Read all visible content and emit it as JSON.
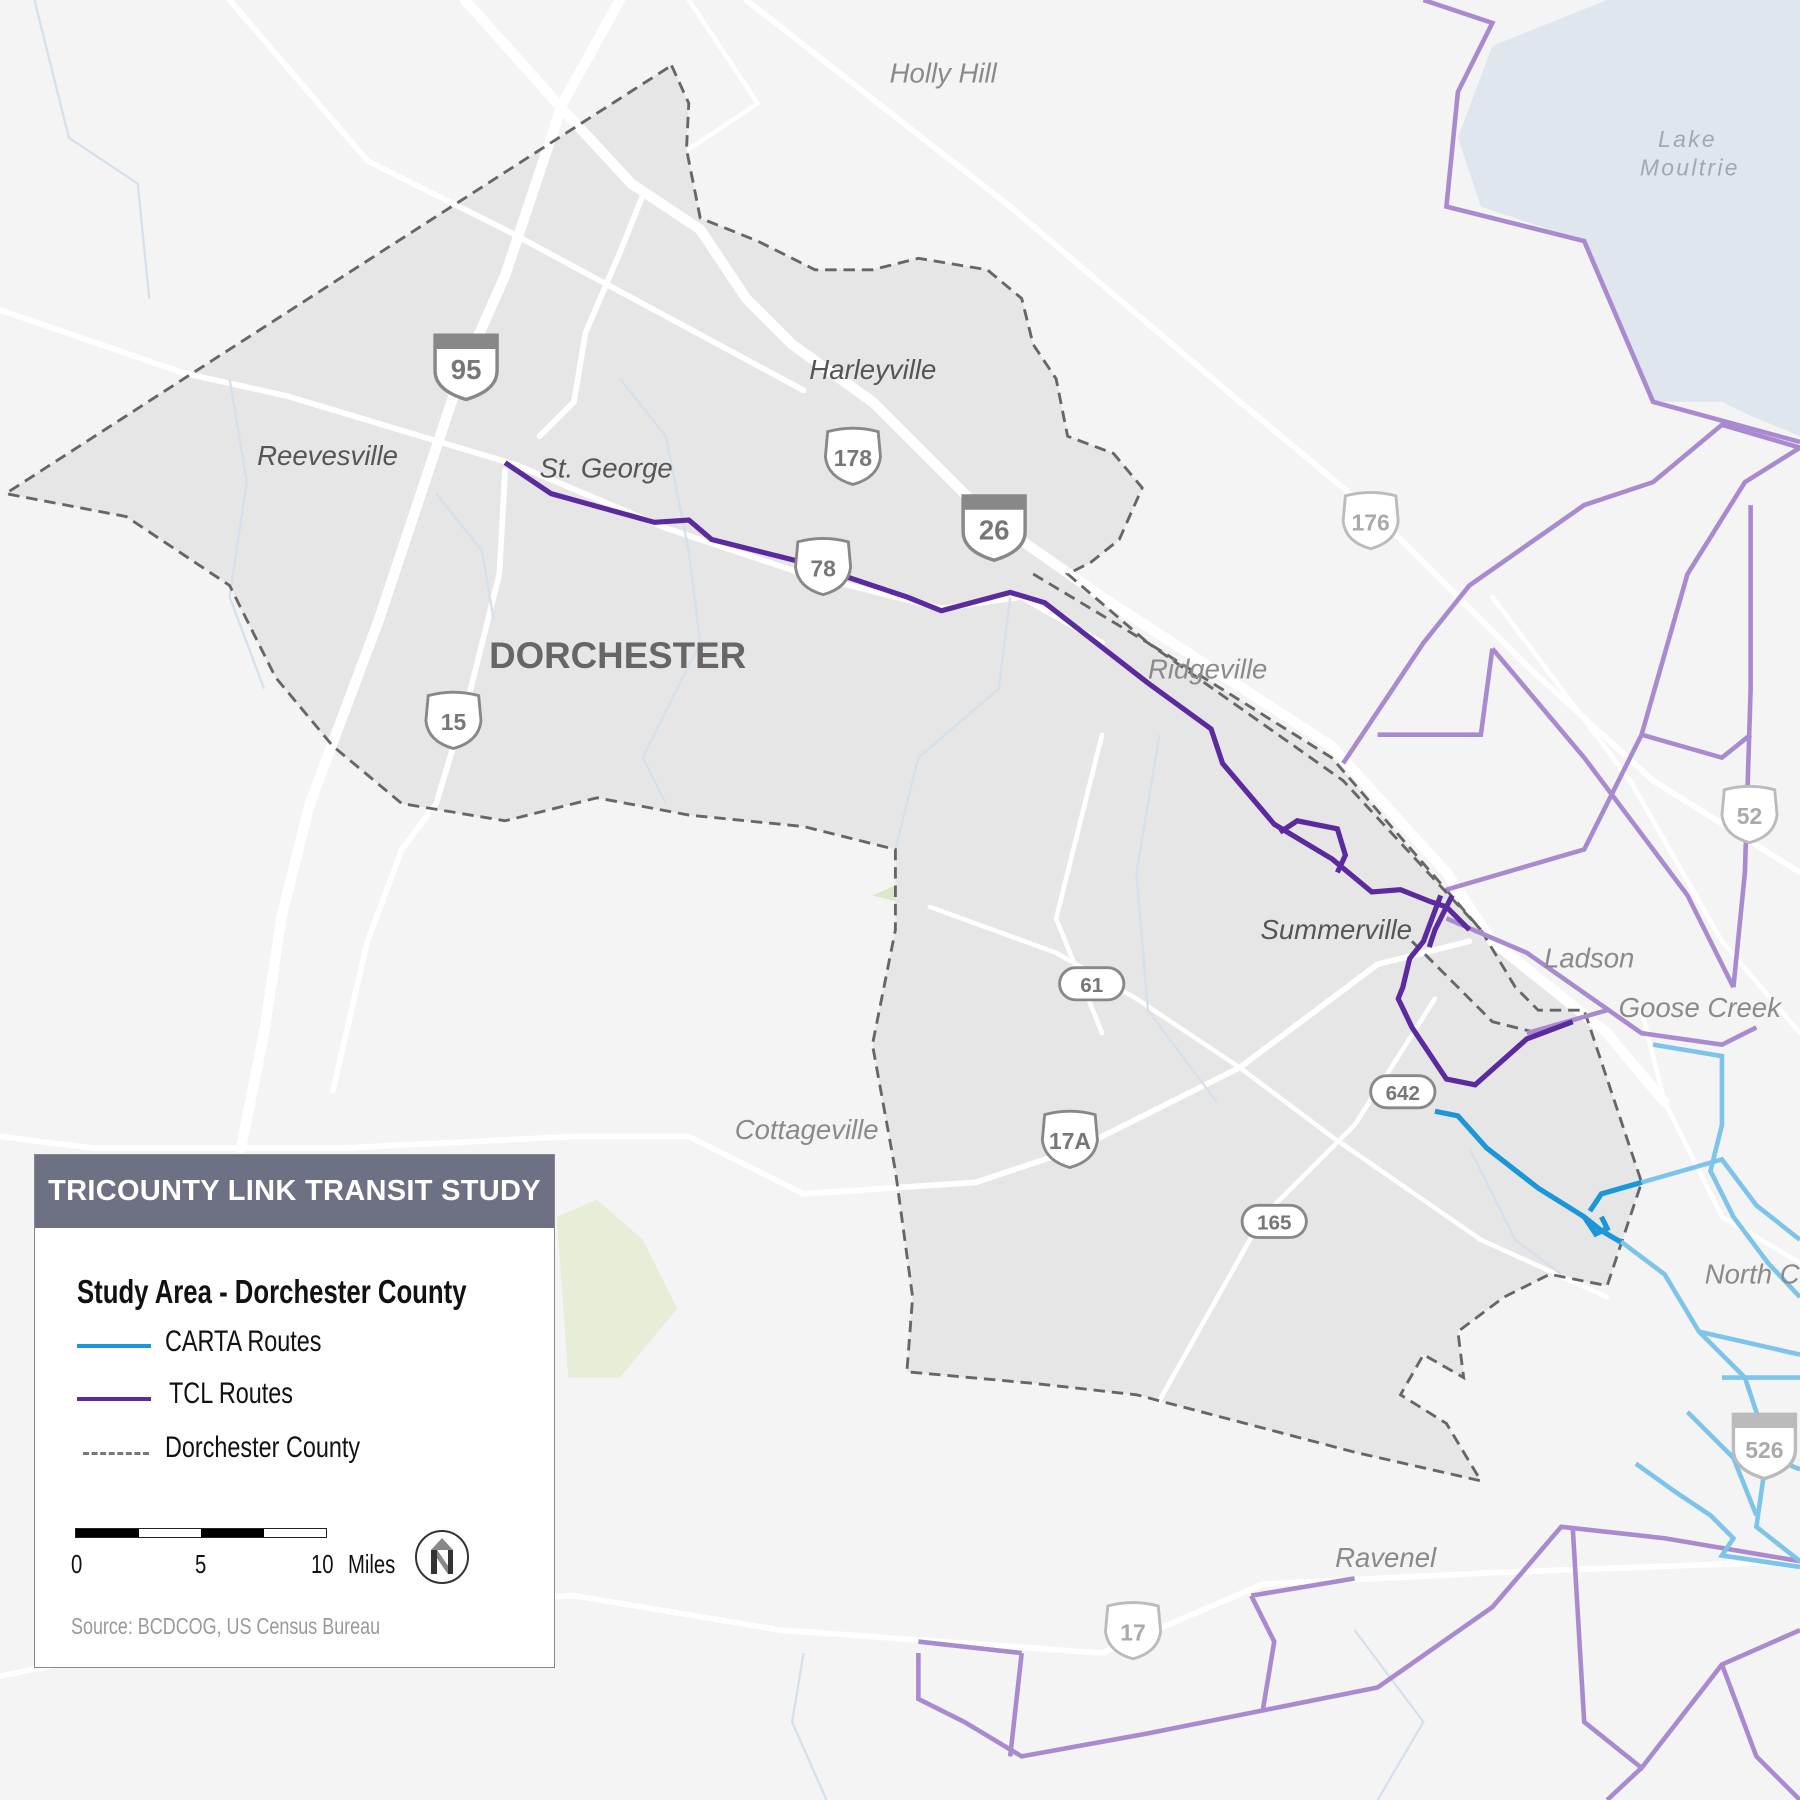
{
  "legend": {
    "title": "TRICOUNTY LINK TRANSIT STUDY",
    "subtitle": "Study Area - Dorchester County",
    "items": [
      {
        "label": "CARTA Routes",
        "color": "#1a96d9",
        "style": "solid"
      },
      {
        "label": "TCL Routes",
        "color": "#5b2a9e",
        "style": "solid"
      },
      {
        "label": "Dorchester County",
        "color": "#777777",
        "style": "dashed"
      }
    ],
    "scale": {
      "ticks": [
        "0",
        "5",
        "10"
      ],
      "unit": "Miles"
    },
    "north_arrow": "N",
    "source": "Source: BCDCOG, US Census Bureau"
  },
  "map": {
    "county_label": "DORCHESTER",
    "places": [
      "Holly Hill",
      "Harleyville",
      "Reevesville",
      "St. George",
      "Ridgeville",
      "Summerville",
      "Ladson",
      "Goose Creek",
      "North Charleston",
      "Cottageville",
      "Ravenel"
    ],
    "water": [
      "Lake",
      "Moultrie"
    ],
    "interstates": [
      "95",
      "26",
      "526"
    ],
    "us_routes": [
      "178",
      "78",
      "15",
      "176",
      "52",
      "17A",
      "17"
    ],
    "state_routes": [
      "61",
      "642",
      "165"
    ],
    "colors": {
      "background": "#f4f4f4",
      "study_area": "#e8e8e8",
      "water": "#dfe6ee",
      "roads": "#ffffff",
      "tcl_route": "#5b2a9e",
      "tcl_route_other": "#a98ad0",
      "carta_route": "#1a96d9",
      "carta_route_other": "#7cc4ea",
      "county_boundary": "#666666"
    }
  }
}
